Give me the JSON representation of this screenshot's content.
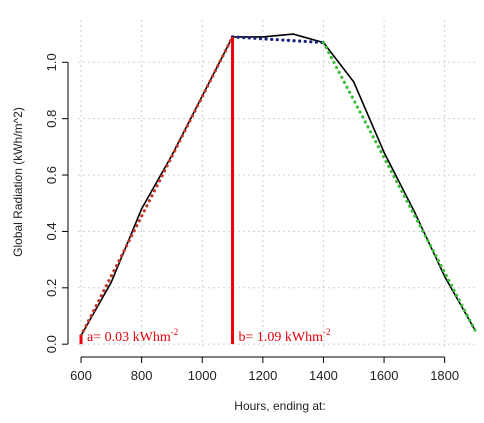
{
  "chart_data": {
    "type": "line",
    "title": "",
    "xlabel": "Hours, ending at:",
    "ylabel": "Global Radiation (kWh/m^2)",
    "xlim": [
      590,
      1910
    ],
    "ylim": [
      -0.01,
      1.15
    ],
    "x_ticks": [
      600,
      800,
      1000,
      1200,
      1400,
      1600,
      1800
    ],
    "y_ticks": [
      0.0,
      0.2,
      0.4,
      0.6,
      0.8,
      1.0
    ],
    "y_tick_labels": [
      "0.0",
      "0.2",
      "0.4",
      "0.6",
      "0.8",
      "1.0"
    ],
    "grid": true,
    "series": [
      {
        "style": "solid",
        "color": "#000000",
        "points": [
          [
            600,
            0.03
          ],
          [
            700,
            0.22
          ],
          [
            800,
            0.48
          ],
          [
            900,
            0.67
          ],
          [
            1000,
            0.88
          ],
          [
            1100,
            1.09
          ],
          [
            1200,
            1.09
          ],
          [
            1300,
            1.1
          ],
          [
            1400,
            1.07
          ],
          [
            1500,
            0.93
          ],
          [
            1600,
            0.68
          ],
          [
            1700,
            0.47
          ],
          [
            1800,
            0.24
          ],
          [
            1900,
            0.05
          ]
        ]
      },
      {
        "style": "dotted",
        "color": "#c0392b",
        "points": [
          [
            600,
            0.03
          ],
          [
            1100,
            1.09
          ]
        ]
      },
      {
        "style": "dotted",
        "color": "#1a237e",
        "points": [
          [
            1100,
            1.09
          ],
          [
            1400,
            1.07
          ]
        ]
      },
      {
        "style": "dotted",
        "color": "#3dbd3d",
        "points": [
          [
            1400,
            1.07
          ],
          [
            1900,
            0.05
          ]
        ]
      }
    ],
    "markers": [
      {
        "x": 600,
        "y0": 0.0,
        "y1": 0.03,
        "color": "#e8000b"
      },
      {
        "x": 1100,
        "y0": 0.0,
        "y1": 1.09,
        "color": "#e8000b"
      }
    ],
    "annotations": [
      {
        "text": "a= 0.03 kWhm",
        "sup": "-2",
        "x": 600,
        "y": 0.0,
        "color": "#e8000b"
      },
      {
        "text": "b= 1.09 kWhm",
        "sup": "-2",
        "x": 1100,
        "y": 0.0,
        "color": "#e8000b"
      }
    ]
  }
}
